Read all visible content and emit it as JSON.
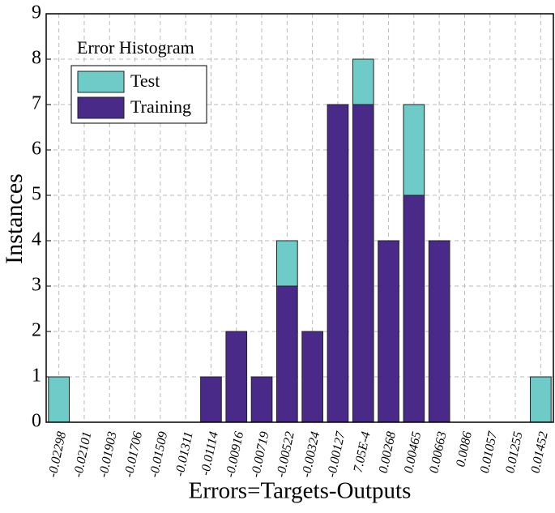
{
  "chart_data": {
    "type": "bar",
    "stacked": true,
    "legend_title": "Error Histogram",
    "categories": [
      "-0.02298",
      "-0.02101",
      "-0.01903",
      "-0.01706",
      "-0.01509",
      "-0.01311",
      "-0.01114",
      "-0.00916",
      "-0.00719",
      "-0.00522",
      "-0.00324",
      "-0.00127",
      "7.05E-4",
      "0.00268",
      "0.00465",
      "0.00663",
      "0.0086",
      "0.01057",
      "0.01255",
      "0.01452"
    ],
    "series": [
      {
        "name": "Test",
        "color": "#6ecbc8",
        "values": [
          1,
          0,
          0,
          0,
          0,
          0,
          0,
          0,
          0,
          1,
          0,
          0,
          1,
          0,
          2,
          0,
          0,
          0,
          0,
          1
        ]
      },
      {
        "name": "Training",
        "color": "#4a2a88",
        "values": [
          0,
          0,
          0,
          0,
          0,
          0,
          1,
          2,
          1,
          3,
          2,
          7,
          7,
          4,
          5,
          4,
          0,
          0,
          0,
          0
        ]
      }
    ],
    "ylabel": "Instances",
    "xlabel": "Errors=Targets-Outputs",
    "ylim": [
      0,
      9
    ],
    "yticks": [
      0,
      1,
      2,
      3,
      4,
      5,
      6,
      7,
      8,
      9
    ],
    "grid": true,
    "legend": "upper left"
  }
}
